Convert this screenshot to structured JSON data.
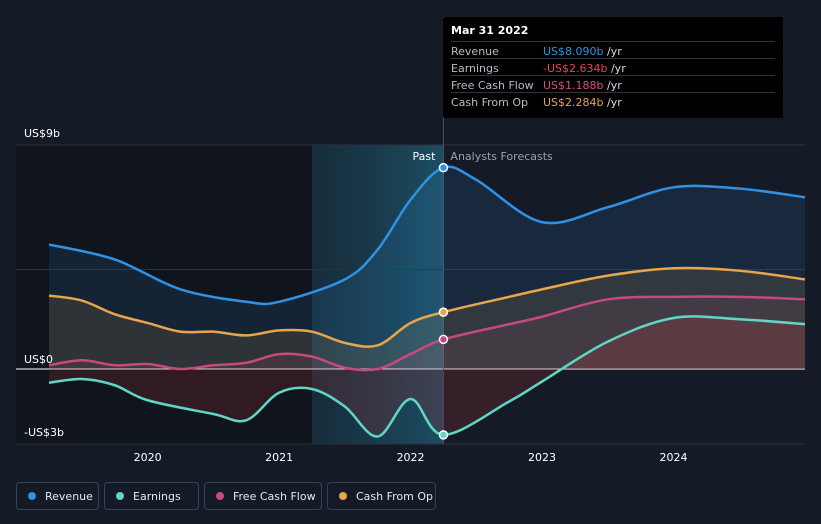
{
  "tooltip": {
    "date": "Mar 31 2022",
    "rows": [
      {
        "label": "Revenue",
        "value": "US$8.090b",
        "unit": " /yr",
        "color": "#2e93e6"
      },
      {
        "label": "Earnings",
        "value": "-US$2.634b",
        "unit": " /yr",
        "color": "#e8474f"
      },
      {
        "label": "Free Cash Flow",
        "value": "US$1.188b",
        "unit": " /yr",
        "color": "#d24f8a"
      },
      {
        "label": "Cash From Op",
        "value": "US$2.284b",
        "unit": " /yr",
        "color": "#e9a44c"
      }
    ]
  },
  "legend": [
    {
      "label": "Revenue",
      "color": "#2e93e6"
    },
    {
      "label": "Earnings",
      "color": "#5fd6c6"
    },
    {
      "label": "Free Cash Flow",
      "color": "#c7497e"
    },
    {
      "label": "Cash From Op",
      "color": "#e9a44c"
    }
  ],
  "chart_data": {
    "type": "line",
    "xlabel": "",
    "ylabel": "",
    "ylim": [
      -3,
      9
    ],
    "xlim": [
      2019.25,
      2025.0
    ],
    "x_ticks": [
      2020,
      2021,
      2022,
      2023,
      2024
    ],
    "x_tick_labels": [
      "2020",
      "2021",
      "2022",
      "2023",
      "2024"
    ],
    "y_tick_labels": [
      {
        "value": 9,
        "label": "US$9b"
      },
      {
        "value": 0,
        "label": "US$0"
      },
      {
        "value": -3,
        "label": "-US$3b"
      }
    ],
    "past_label": "Past",
    "forecast_label": "Analysts Forecasts",
    "past_end": 2022.25,
    "highlight_start": 2021.25,
    "series": [
      {
        "name": "Revenue",
        "color": "#2e93e6",
        "points": [
          [
            2019.25,
            5.0
          ],
          [
            2019.75,
            4.4
          ],
          [
            2020.25,
            3.2
          ],
          [
            2020.75,
            2.7
          ],
          [
            2021.0,
            2.7
          ],
          [
            2021.5,
            3.6
          ],
          [
            2021.75,
            4.8
          ],
          [
            2022.0,
            6.8
          ],
          [
            2022.25,
            8.09
          ],
          [
            2022.5,
            7.6
          ],
          [
            2023.0,
            5.9
          ],
          [
            2023.5,
            6.5
          ],
          [
            2024.0,
            7.3
          ],
          [
            2024.5,
            7.25
          ],
          [
            2025.0,
            6.9
          ]
        ]
      },
      {
        "name": "Earnings",
        "color": "#5fd6c6",
        "points": [
          [
            2019.25,
            -0.55
          ],
          [
            2019.5,
            -0.4
          ],
          [
            2019.75,
            -0.65
          ],
          [
            2020.0,
            -1.25
          ],
          [
            2020.5,
            -1.8
          ],
          [
            2020.75,
            -2.05
          ],
          [
            2021.0,
            -0.95
          ],
          [
            2021.25,
            -0.8
          ],
          [
            2021.5,
            -1.5
          ],
          [
            2021.75,
            -2.7
          ],
          [
            2022.0,
            -1.2
          ],
          [
            2022.25,
            -2.634
          ],
          [
            2022.75,
            -1.3
          ],
          [
            2023.0,
            -0.5
          ],
          [
            2023.5,
            1.1
          ],
          [
            2024.0,
            2.05
          ],
          [
            2024.5,
            2.0
          ],
          [
            2025.0,
            1.8
          ]
        ]
      },
      {
        "name": "Free Cash Flow",
        "color": "#c7497e",
        "points": [
          [
            2019.25,
            0.15
          ],
          [
            2019.5,
            0.35
          ],
          [
            2019.75,
            0.15
          ],
          [
            2020.0,
            0.2
          ],
          [
            2020.25,
            0.0
          ],
          [
            2020.5,
            0.15
          ],
          [
            2020.75,
            0.25
          ],
          [
            2021.0,
            0.6
          ],
          [
            2021.25,
            0.5
          ],
          [
            2021.5,
            0.05
          ],
          [
            2021.75,
            0.0
          ],
          [
            2022.0,
            0.6
          ],
          [
            2022.25,
            1.188
          ],
          [
            2022.75,
            1.8
          ],
          [
            2023.0,
            2.1
          ],
          [
            2023.5,
            2.8
          ],
          [
            2024.0,
            2.9
          ],
          [
            2024.5,
            2.9
          ],
          [
            2025.0,
            2.8
          ]
        ]
      },
      {
        "name": "Cash From Op",
        "color": "#e9a44c",
        "points": [
          [
            2019.25,
            2.95
          ],
          [
            2019.5,
            2.75
          ],
          [
            2019.75,
            2.2
          ],
          [
            2020.0,
            1.85
          ],
          [
            2020.25,
            1.5
          ],
          [
            2020.5,
            1.5
          ],
          [
            2020.75,
            1.35
          ],
          [
            2021.0,
            1.55
          ],
          [
            2021.25,
            1.5
          ],
          [
            2021.5,
            1.05
          ],
          [
            2021.75,
            0.95
          ],
          [
            2022.0,
            1.85
          ],
          [
            2022.25,
            2.284
          ],
          [
            2022.75,
            2.9
          ],
          [
            2023.0,
            3.2
          ],
          [
            2023.5,
            3.75
          ],
          [
            2024.0,
            4.05
          ],
          [
            2024.5,
            3.95
          ],
          [
            2025.0,
            3.6
          ]
        ]
      }
    ]
  }
}
